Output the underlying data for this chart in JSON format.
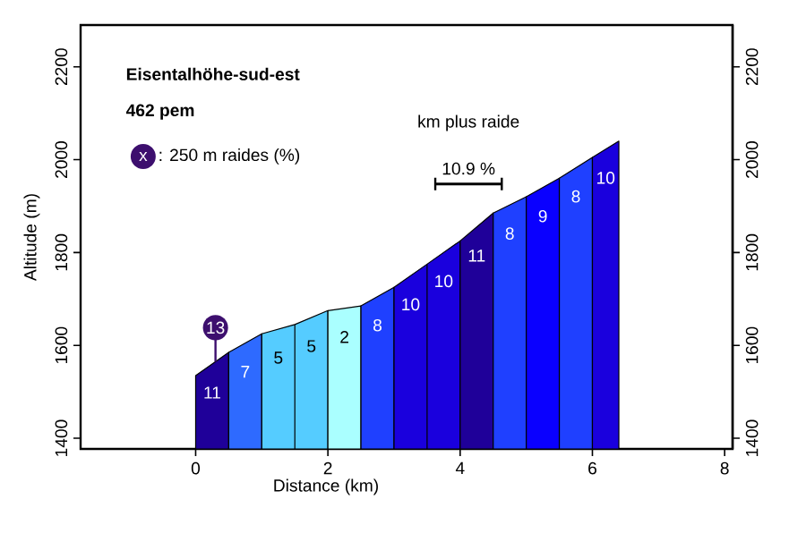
{
  "chart_data": {
    "type": "area",
    "title": "Eisentalhöhe-sud-est",
    "subtitle": "462 pem",
    "xlabel": "Distance (km)",
    "ylabel": "Altitude (m)",
    "xlim": [
      -1.74,
      8.12
    ],
    "ylim": [
      1377,
      2290
    ],
    "xticks": [
      0,
      2,
      4,
      6,
      8
    ],
    "yticks": [
      1400,
      1600,
      1800,
      2000,
      2200
    ],
    "y2lim": [
      1377,
      2290
    ],
    "y2ticks": [
      1400,
      1600,
      1800,
      2000,
      2200
    ],
    "series": [
      {
        "name": "11",
        "color": "#1f0099",
        "x": [
          0,
          0.5
        ],
        "values": [
          1535,
          1585
        ]
      },
      {
        "name": "7",
        "color": "#2e6aff",
        "x": [
          0.5,
          1
        ],
        "values": [
          1585,
          1625
        ]
      },
      {
        "name": "5",
        "color": "#55ccff",
        "x": [
          1,
          1.5,
          2
        ],
        "values": [
          1625,
          1645,
          1675
        ]
      },
      {
        "name": "2",
        "color": "#aaffff",
        "x": [
          2,
          2.5
        ],
        "values": [
          1675,
          1685
        ]
      },
      {
        "name": "8",
        "color": "#1f40ff",
        "x": [
          2.5,
          3
        ],
        "values": [
          1685,
          1725
        ]
      },
      {
        "name": "10",
        "color": "#1a00dd",
        "x": [
          3,
          3.5,
          4
        ],
        "values": [
          1725,
          1775,
          1825
        ]
      },
      {
        "name": "11",
        "color": "#1f0099",
        "x": [
          4,
          4.5
        ],
        "values": [
          1825,
          1885
        ]
      },
      {
        "name": "8",
        "color": "#1f40ff",
        "x": [
          4.5,
          5
        ],
        "values": [
          1885,
          1920
        ]
      },
      {
        "name": "9",
        "color": "#0a00ff",
        "x": [
          5,
          5.5
        ],
        "values": [
          1920,
          1960
        ]
      },
      {
        "name": "8",
        "color": "#1f40ff",
        "x": [
          5.5,
          6
        ],
        "values": [
          1960,
          2005
        ]
      },
      {
        "name": "10",
        "color": "#1a00dd",
        "x": [
          6,
          6.4
        ],
        "values": [
          2005,
          2040
        ]
      }
    ],
    "annotations": [
      "km plus raide",
      "10.9 %",
      "x",
      ": 250 m raides (%)",
      {
        "text": "13",
        "x": 0.3,
        "y": 1565
      }
    ]
  }
}
